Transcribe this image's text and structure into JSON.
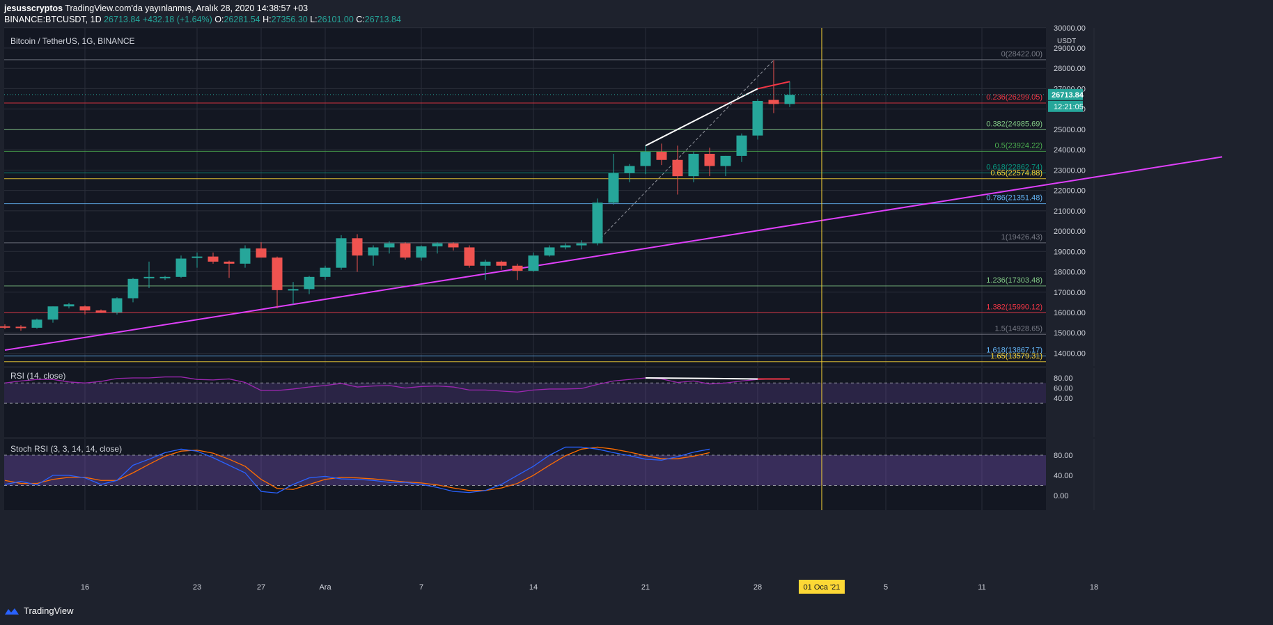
{
  "header": {
    "publisher": "jesusscryptos",
    "published_text": "TradingView.com'da yayınlanmış, Aralık 28, 2020 14:38:57 +03",
    "symbol": "BINANCE:BTCUSDT, 1D",
    "last": "26713.84",
    "change": "+432.18 (+1.64%)",
    "o_label": "O:",
    "o": "26281.54",
    "h_label": "H:",
    "h": "27356.30",
    "l_label": "L:",
    "l": "26101.00",
    "c_label": "C:",
    "c": "26713.84"
  },
  "footer": {
    "brand": "TradingView"
  },
  "colors": {
    "background": "#1e222d",
    "panel": "#131722",
    "grid": "#2a2e39",
    "up": "#26a69a",
    "down": "#ef5350",
    "trendline": "#e040fb",
    "rsi": "#9c27b0",
    "stoch_k": "#2962ff",
    "stoch_d": "#ff6d00",
    "vline": "#fdd835"
  },
  "chart_data": {
    "type": "candlestick",
    "title": "Bitcoin / TetherUS, 1G, BINANCE",
    "currency": "USDT",
    "price_ticks": [
      "30000.00",
      "29000.00",
      "28000.00",
      "27000.00",
      "26000.00",
      "25000.00",
      "24000.00",
      "23000.00",
      "22000.00",
      "21000.00",
      "20000.00",
      "19000.00",
      "18000.00",
      "17000.00",
      "16000.00",
      "15000.00",
      "14000.00"
    ],
    "last_price_label": "26713.84",
    "countdown_label": "12:21:05",
    "date_labels": [
      {
        "label": "16",
        "day": 5
      },
      {
        "label": "23",
        "day": 12
      },
      {
        "label": "27",
        "day": 16
      },
      {
        "label": "Ara",
        "day": 20
      },
      {
        "label": "7",
        "day": 26
      },
      {
        "label": "14",
        "day": 33
      },
      {
        "label": "21",
        "day": 40
      },
      {
        "label": "28",
        "day": 47
      },
      {
        "label": "01 Oca '21",
        "day": 51
      },
      {
        "label": "5",
        "day": 55
      },
      {
        "label": "11",
        "day": 61
      },
      {
        "label": "18",
        "day": 68
      }
    ],
    "candles": [
      [
        15320,
        15420,
        15180,
        15300
      ],
      [
        15300,
        15380,
        15100,
        15250
      ],
      [
        15250,
        15700,
        15200,
        15650
      ],
      [
        15650,
        16300,
        15500,
        16300
      ],
      [
        16300,
        16480,
        16200,
        16400
      ],
      [
        16300,
        16350,
        15900,
        16100
      ],
      [
        16100,
        16150,
        15980,
        16000
      ],
      [
        16000,
        16750,
        15900,
        16700
      ],
      [
        16700,
        17700,
        16500,
        17650
      ],
      [
        17700,
        18500,
        17200,
        17750
      ],
      [
        17750,
        17800,
        17600,
        17750
      ],
      [
        17750,
        18800,
        17700,
        18650
      ],
      [
        18700,
        18950,
        18200,
        18750
      ],
      [
        18750,
        18950,
        18400,
        18500
      ],
      [
        18500,
        18550,
        17700,
        18400
      ],
      [
        18400,
        19300,
        18200,
        19150
      ],
      [
        19150,
        19450,
        18800,
        18700
      ],
      [
        18700,
        18750,
        16200,
        17100
      ],
      [
        17100,
        17500,
        16400,
        17150
      ],
      [
        17150,
        17800,
        16900,
        17750
      ],
      [
        17750,
        18300,
        17600,
        18200
      ],
      [
        18200,
        19800,
        18100,
        19650
      ],
      [
        19650,
        19850,
        18000,
        18800
      ],
      [
        18800,
        19300,
        18300,
        19200
      ],
      [
        19200,
        19500,
        18900,
        19400
      ],
      [
        19400,
        19450,
        18600,
        18700
      ],
      [
        18700,
        19300,
        18550,
        19250
      ],
      [
        19250,
        19450,
        18900,
        19400
      ],
      [
        19400,
        19450,
        19050,
        19200
      ],
      [
        19200,
        19300,
        18200,
        18300
      ],
      [
        18300,
        18600,
        17600,
        18500
      ],
      [
        18500,
        18550,
        18100,
        18300
      ],
      [
        18300,
        18400,
        17600,
        18050
      ],
      [
        18050,
        18950,
        18000,
        18800
      ],
      [
        18800,
        19300,
        18750,
        19200
      ],
      [
        19200,
        19400,
        19100,
        19300
      ],
      [
        19300,
        19550,
        19100,
        19400
      ],
      [
        19400,
        21600,
        19300,
        21400
      ],
      [
        21400,
        23800,
        21300,
        22850
      ],
      [
        22850,
        23300,
        22400,
        23200
      ],
      [
        23200,
        24200,
        22800,
        23900
      ],
      [
        23900,
        24300,
        23250,
        23500
      ],
      [
        23500,
        24200,
        21800,
        22700
      ],
      [
        22700,
        23900,
        22400,
        23800
      ],
      [
        23800,
        24100,
        22700,
        23200
      ],
      [
        23200,
        23700,
        22700,
        23700
      ],
      [
        23700,
        24800,
        23400,
        24700
      ],
      [
        24700,
        26500,
        24500,
        26400
      ],
      [
        26450,
        28400,
        25800,
        26250
      ],
      [
        26250,
        27350,
        26100,
        26700
      ]
    ],
    "fib_levels": [
      {
        "label": "0(28422.00)",
        "price": 28422,
        "color": "#787b86"
      },
      {
        "label": "0.236(26299.05)",
        "price": 26299,
        "color": "#f23645"
      },
      {
        "label": "0.382(24985.69)",
        "price": 24986,
        "color": "#81c784"
      },
      {
        "label": "0.5(23924.22)",
        "price": 23924,
        "color": "#4caf50"
      },
      {
        "label": "0.618(22862.74)",
        "price": 22863,
        "color": "#089981"
      },
      {
        "label": "0.65(22574.88)",
        "price": 22575,
        "color": "#fdd835"
      },
      {
        "label": "0.786(21351.48)",
        "price": 21351,
        "color": "#64b5f6"
      },
      {
        "label": "1(19426.43)",
        "price": 19426,
        "color": "#787b86"
      },
      {
        "label": "1.236(17303.48)",
        "price": 17303,
        "color": "#81c784"
      },
      {
        "label": "1.382(15990.12)",
        "price": 15990,
        "color": "#f23645"
      },
      {
        "label": "1.5(14928.65)",
        "price": 14929,
        "color": "#787b86"
      },
      {
        "label": "1.618(13867.17)",
        "price": 13867,
        "color": "#64b5f6"
      },
      {
        "label": "1.65(13579.31)",
        "price": 13579,
        "color": "#fdd835"
      }
    ],
    "trendline": {
      "x1": 0,
      "y1": 14150,
      "x2": 76,
      "y2": 23650,
      "color": "#e040fb"
    },
    "annotations": {
      "white_line": {
        "x1": 40,
        "y1": 24200,
        "x2": 47,
        "y2": 27000
      },
      "red_line": {
        "x1": 47,
        "y1": 27000,
        "x2": 49,
        "y2": 27350
      },
      "dashed_line": {
        "x1": 37,
        "y1": 19500,
        "x2": 48,
        "y2": 28400
      },
      "vertical_line_day": 51
    },
    "rsi": {
      "title": "RSI (14, close)",
      "ticks": [
        "80.00",
        "60.00",
        "40.00"
      ],
      "band": [
        70,
        30
      ],
      "values": [
        70,
        74,
        77,
        77,
        72,
        70,
        73,
        79,
        80,
        80,
        82,
        82,
        77,
        76,
        78,
        71,
        55,
        55,
        58,
        62,
        65,
        69,
        62,
        64,
        65,
        60,
        63,
        64,
        62,
        56,
        56,
        54,
        52,
        56,
        58,
        58,
        59,
        67,
        74,
        77,
        80,
        78,
        71,
        74,
        68,
        70,
        74,
        77,
        78,
        78
      ],
      "rsi_white": {
        "x1": 40,
        "y1": 80,
        "x2": 47,
        "y2": 78
      },
      "rsi_red": {
        "x1": 47,
        "y1": 78,
        "x2": 49,
        "y2": 78
      }
    },
    "stoch": {
      "title": "Stoch RSI (3, 3, 14, 14, close)",
      "ticks": [
        "80.00",
        "40.00",
        "0.00"
      ],
      "band": [
        80,
        20
      ],
      "k": [
        22,
        28,
        21,
        40,
        40,
        35,
        22,
        30,
        60,
        72,
        85,
        92,
        88,
        75,
        60,
        45,
        8,
        5,
        22,
        35,
        38,
        33,
        32,
        30,
        26,
        26,
        22,
        16,
        8,
        6,
        10,
        22,
        40,
        58,
        80,
        96,
        96,
        92,
        85,
        79,
        72,
        70,
        77,
        86,
        92
      ],
      "d": [
        30,
        24,
        24,
        32,
        36,
        36,
        30,
        30,
        45,
        62,
        78,
        88,
        90,
        84,
        72,
        58,
        32,
        14,
        12,
        22,
        32,
        36,
        35,
        33,
        30,
        27,
        25,
        21,
        15,
        10,
        10,
        15,
        24,
        40,
        60,
        79,
        92,
        96,
        92,
        86,
        79,
        73,
        73,
        78,
        85
      ]
    }
  }
}
